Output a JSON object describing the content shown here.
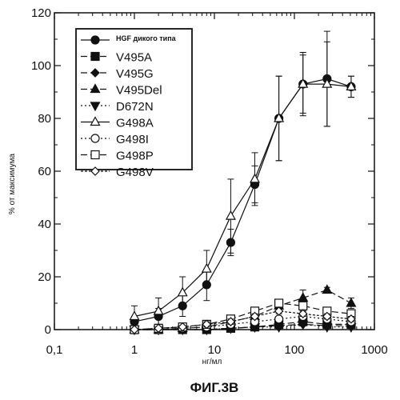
{
  "chart_data": {
    "type": "line",
    "title": "",
    "xlabel": "нг/мл",
    "ylabel": "% от максимума",
    "xscale": "log",
    "xlim": [
      0.1,
      1000
    ],
    "ylim": [
      0,
      120
    ],
    "x_ticks": [
      "0,1",
      "1",
      "10",
      "100",
      "1000"
    ],
    "y_ticks": [
      "0",
      "20",
      "40",
      "60",
      "80",
      "100",
      "120"
    ],
    "legend_position": "top-left",
    "caption": "ФИГ.3В",
    "series": [
      {
        "name": "HGF дикого типа",
        "marker": "circle-filled",
        "dash": "solid",
        "x": [
          1,
          2,
          4,
          8,
          16,
          32,
          64,
          128,
          256,
          512
        ],
        "y": [
          3,
          5,
          9,
          17,
          33,
          55,
          80,
          93,
          95,
          92
        ],
        "err": [
          2,
          3,
          4,
          6,
          5,
          7,
          16,
          11,
          18,
          4
        ]
      },
      {
        "name": "V495A",
        "marker": "square-filled",
        "dash": "8,4",
        "x": [
          1,
          2,
          4,
          8,
          16,
          32,
          64,
          128,
          256,
          512
        ],
        "y": [
          0,
          0,
          0,
          0,
          0.5,
          1,
          2,
          3,
          2,
          2
        ],
        "err": [
          0,
          0,
          0,
          0,
          0,
          0,
          1,
          1,
          1,
          1
        ]
      },
      {
        "name": "V495G",
        "marker": "diamond-filled",
        "dash": "8,4",
        "x": [
          1,
          2,
          4,
          8,
          16,
          32,
          64,
          128,
          256,
          512
        ],
        "y": [
          0,
          0,
          0,
          0,
          0.5,
          1,
          1.5,
          2,
          1.5,
          1.5
        ],
        "err": [
          0,
          0,
          0,
          0,
          0,
          0,
          0,
          0,
          0,
          0
        ]
      },
      {
        "name": "V495Del",
        "marker": "triangle-up-filled",
        "dash": "8,4",
        "x": [
          1,
          2,
          4,
          8,
          16,
          32,
          64,
          128,
          256,
          512
        ],
        "y": [
          0,
          0,
          0.5,
          1,
          3,
          5,
          9,
          12,
          15,
          10
        ],
        "err": [
          0,
          0,
          0,
          1,
          1,
          2,
          2,
          3,
          1,
          2
        ]
      },
      {
        "name": "D672N",
        "marker": "triangle-down-filled",
        "dash": "2,3",
        "x": [
          1,
          2,
          4,
          8,
          16,
          32,
          64,
          128,
          256,
          512
        ],
        "y": [
          0,
          0,
          0,
          0,
          0.5,
          1,
          1,
          2,
          1,
          1
        ],
        "err": [
          0,
          0,
          0,
          0,
          0,
          0,
          0,
          0,
          0,
          0
        ]
      },
      {
        "name": "G498A",
        "marker": "triangle-up-open",
        "dash": "solid",
        "x": [
          1,
          2,
          4,
          8,
          16,
          32,
          64,
          128,
          256,
          512
        ],
        "y": [
          5,
          7,
          14,
          23,
          43,
          57,
          80,
          93,
          93,
          92
        ],
        "err": [
          4,
          5,
          6,
          7,
          14,
          10,
          16,
          12,
          16,
          4
        ]
      },
      {
        "name": "G498I",
        "marker": "circle-open",
        "dash": "2,3",
        "x": [
          1,
          2,
          4,
          8,
          16,
          32,
          64,
          128,
          256,
          512
        ],
        "y": [
          0,
          0,
          0.5,
          1,
          2,
          3,
          4,
          5,
          4,
          3
        ],
        "err": [
          0,
          0,
          0,
          1,
          1,
          1,
          1,
          2,
          1,
          1
        ]
      },
      {
        "name": "G498P",
        "marker": "square-open",
        "dash": "8,4",
        "x": [
          1,
          2,
          4,
          8,
          16,
          32,
          64,
          128,
          256,
          512
        ],
        "y": [
          0,
          0.5,
          1,
          2,
          4,
          7,
          10,
          9,
          7,
          6
        ],
        "err": [
          0,
          0,
          0,
          1,
          1,
          1,
          1,
          2,
          1,
          1
        ]
      },
      {
        "name": "G498V",
        "marker": "diamond-open",
        "dash": "3,2",
        "x": [
          1,
          2,
          4,
          8,
          16,
          32,
          64,
          128,
          256,
          512
        ],
        "y": [
          0,
          0.5,
          1,
          2,
          3,
          5,
          7,
          6,
          5,
          4
        ],
        "err": [
          0,
          0,
          0,
          1,
          1,
          1,
          1,
          1,
          1,
          1
        ]
      }
    ]
  }
}
